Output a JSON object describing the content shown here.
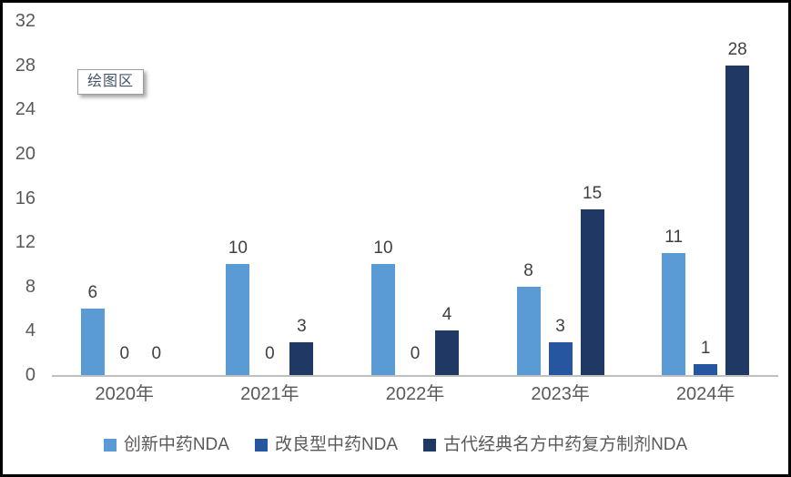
{
  "tooltip": {
    "label": "绘图区"
  },
  "colors": {
    "series1": "#5B9BD5",
    "series2": "#2656A0",
    "series3": "#1F3864",
    "axis_line": "#BFBFBF",
    "axis_text": "#595959",
    "data_label_text": "#404040",
    "frame_border": "#000000",
    "tooltip_border": "#9E9E9E"
  },
  "chart_data": {
    "type": "bar",
    "title": "",
    "xlabel": "",
    "ylabel": "",
    "categories": [
      "2020年",
      "2021年",
      "2022年",
      "2023年",
      "2024年"
    ],
    "series": [
      {
        "name": "创新中药NDA",
        "color": "#5B9BD5",
        "values": [
          6,
          10,
          10,
          8,
          11
        ]
      },
      {
        "name": "改良型中药NDA",
        "color": "#2656A0",
        "values": [
          0,
          0,
          0,
          3,
          1
        ]
      },
      {
        "name": "古代经典名方中药复方制剂NDA",
        "color": "#1F3864",
        "values": [
          0,
          3,
          4,
          15,
          28
        ]
      }
    ],
    "ylim": [
      0,
      32
    ],
    "yticks": [
      0,
      4,
      8,
      12,
      16,
      20,
      24,
      28,
      32
    ],
    "grid": false,
    "data_labels": true,
    "legend_position": "bottom"
  }
}
